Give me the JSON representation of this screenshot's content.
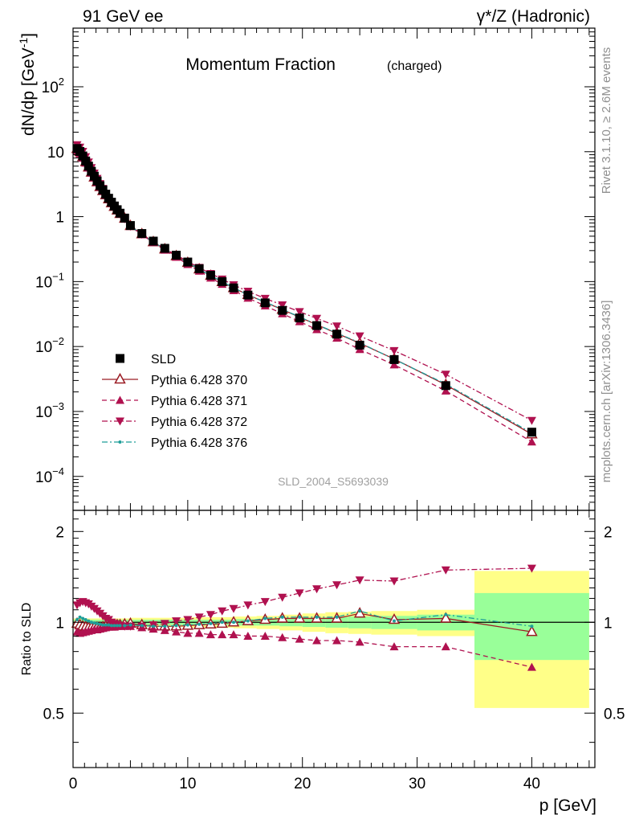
{
  "header": {
    "left": "91 GeV ee",
    "right": "γ*/Z (Hadronic)"
  },
  "side_labels": {
    "rivet": "Rivet 3.1.10, ≥ 2.6M events",
    "mcplots": "mcplots.cern.ch [arXiv:1306.3436]"
  },
  "chart_data": {
    "type": "line",
    "title": "Momentum Fraction",
    "title_suffix": "(charged)",
    "watermark": "SLD_2004_S5693039",
    "xlabel": "p [GeV]",
    "ylabel_main": "dN/dp [GeV",
    "ylabel_main_sup": "-1",
    "ylabel_main_close": "]",
    "ylabel_ratio": "Ratio to SLD",
    "xlim": [
      0,
      45.5
    ],
    "ylim_main": [
      3e-05,
      800
    ],
    "ylim_ratio": [
      0.33,
      2.35
    ],
    "y_scale_main": "log",
    "y_scale_ratio": "log",
    "x_ticks": [
      0,
      10,
      20,
      30,
      40
    ],
    "x_tick_labels": [
      "0",
      "10",
      "20",
      "30",
      "40"
    ],
    "main_tick_labels": [
      {
        "v": 0.0001,
        "base": "10",
        "exp": "−4"
      },
      {
        "v": 0.001,
        "base": "10",
        "exp": "−3"
      },
      {
        "v": 0.01,
        "base": "10",
        "exp": "−2"
      },
      {
        "v": 0.1,
        "base": "10",
        "exp": "−1"
      },
      {
        "v": 1,
        "base": "1",
        "exp": ""
      },
      {
        "v": 10,
        "base": "10",
        "exp": ""
      },
      {
        "v": 100,
        "base": "10",
        "exp": "2"
      }
    ],
    "ratio_tick_labels": [
      {
        "v": 0.5,
        "label": "0.5"
      },
      {
        "v": 1,
        "label": "1"
      },
      {
        "v": 2,
        "label": "2"
      }
    ],
    "legend_placement": "lower-left",
    "x": [
      0.35,
      0.6,
      0.85,
      1.1,
      1.35,
      1.6,
      1.85,
      2.1,
      2.35,
      2.6,
      2.85,
      3.1,
      3.35,
      3.6,
      3.85,
      4.1,
      4.5,
      5.0,
      6.0,
      7.0,
      8.0,
      9.0,
      10.0,
      11.0,
      12.0,
      13.0,
      14.0,
      15.25,
      16.75,
      18.25,
      19.75,
      21.25,
      23.0,
      25.0,
      28.0,
      32.5,
      40.0
    ],
    "reference": {
      "name": "SLD",
      "values": [
        11.2,
        10.1,
        8.6,
        7.2,
        6.0,
        5.0,
        4.2,
        3.55,
        3.0,
        2.58,
        2.22,
        1.92,
        1.67,
        1.46,
        1.28,
        1.13,
        0.95,
        0.73,
        0.55,
        0.42,
        0.325,
        0.255,
        0.2,
        0.158,
        0.125,
        0.1,
        0.08,
        0.062,
        0.047,
        0.036,
        0.0275,
        0.021,
        0.0155,
        0.0105,
        0.0063,
        0.0025,
        0.00048
      ],
      "band_edges": [
        0,
        5,
        10,
        12,
        14,
        16,
        18,
        20,
        22,
        24,
        26,
        30,
        35,
        45
      ],
      "band_stat": [
        0.02,
        0.02,
        0.02,
        0.02,
        0.025,
        0.025,
        0.03,
        0.035,
        0.04,
        0.045,
        0.05,
        0.06,
        0.25
      ],
      "band_total": [
        0.03,
        0.035,
        0.04,
        0.04,
        0.045,
        0.05,
        0.06,
        0.07,
        0.08,
        0.085,
        0.09,
        0.1,
        0.48
      ]
    },
    "series": [
      {
        "name": "Pythia 6.428 370",
        "color": "#9b1c24",
        "style": "solid",
        "marker": "triangle-up-open",
        "ratio": [
          0.99,
          0.98,
          0.97,
          0.965,
          0.96,
          0.96,
          0.96,
          0.96,
          0.96,
          0.965,
          0.97,
          0.97,
          0.97,
          0.975,
          0.98,
          0.98,
          0.985,
          0.99,
          0.98,
          0.97,
          0.97,
          0.97,
          0.975,
          0.98,
          0.985,
          0.99,
          1.0,
          1.01,
          1.02,
          1.03,
          1.03,
          1.03,
          1.03,
          1.07,
          1.02,
          1.03,
          0.93
        ]
      },
      {
        "name": "Pythia 6.428 371",
        "color": "#b0114f",
        "style": "dashed",
        "marker": "triangle-up-filled",
        "ratio": [
          0.93,
          0.92,
          0.925,
          0.93,
          0.935,
          0.94,
          0.945,
          0.945,
          0.95,
          0.955,
          0.96,
          0.965,
          0.965,
          0.965,
          0.97,
          0.97,
          0.97,
          0.97,
          0.96,
          0.95,
          0.94,
          0.93,
          0.92,
          0.92,
          0.91,
          0.91,
          0.91,
          0.9,
          0.9,
          0.89,
          0.88,
          0.87,
          0.87,
          0.86,
          0.83,
          0.83,
          0.71
        ]
      },
      {
        "name": "Pythia 6.428 372",
        "color": "#b0114f",
        "style": "dashdot",
        "marker": "triangle-down-filled",
        "ratio": [
          1.14,
          1.16,
          1.17,
          1.16,
          1.15,
          1.13,
          1.11,
          1.09,
          1.07,
          1.05,
          1.03,
          1.02,
          1.0,
          0.99,
          0.98,
          0.975,
          0.97,
          0.97,
          0.97,
          0.98,
          0.99,
          1.01,
          1.02,
          1.04,
          1.06,
          1.09,
          1.11,
          1.14,
          1.17,
          1.21,
          1.25,
          1.29,
          1.33,
          1.38,
          1.37,
          1.49,
          1.51
        ]
      },
      {
        "name": "Pythia 6.428 376",
        "color": "#1f9e99",
        "style": "dashdot",
        "marker": "dot",
        "ratio": [
          1.02,
          1.04,
          1.03,
          1.02,
          1.01,
          1.0,
          0.995,
          0.99,
          0.985,
          0.98,
          0.98,
          0.98,
          0.975,
          0.975,
          0.975,
          0.975,
          0.975,
          0.98,
          0.975,
          0.97,
          0.97,
          0.975,
          0.98,
          0.985,
          0.99,
          1.0,
          1.0,
          1.01,
          1.03,
          1.04,
          1.04,
          1.04,
          1.04,
          1.09,
          1.01,
          1.06,
          0.97
        ]
      }
    ]
  }
}
